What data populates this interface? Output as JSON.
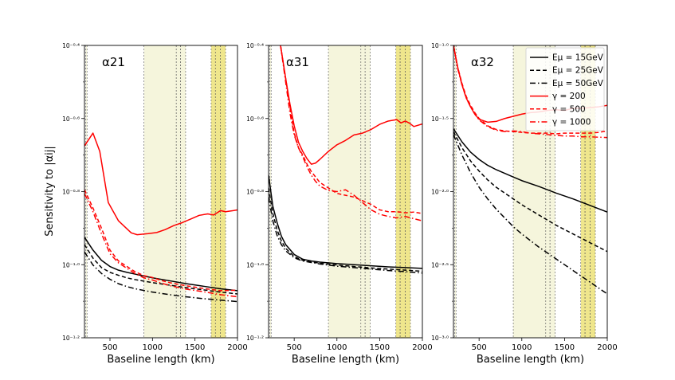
{
  "figure": {
    "ylabel": "Sensitivity to |αij|",
    "xlabel": "Baseline length (km)"
  },
  "chart_data": [
    {
      "type": "line",
      "panel_label": "α21",
      "xlabel": "Baseline length (km)",
      "ylabel": "Sensitivity to |αij|",
      "xlim": [
        200,
        2000
      ],
      "ylim_log10": [
        -1.2,
        -0.4
      ],
      "yscale": "log",
      "xticks": [
        500,
        1000,
        1500,
        2000
      ],
      "yticks": [
        {
          "v": -1.2,
          "label": "10⁻¹·²"
        },
        {
          "v": -1.0,
          "label": "10⁻¹·⁰"
        },
        {
          "v": -0.8,
          "label": "10⁻⁰·⁸"
        },
        {
          "v": -0.6,
          "label": "10⁻⁰·⁶"
        },
        {
          "v": -0.4,
          "label": "10⁻⁰·⁴"
        }
      ],
      "light_bands": [
        [
          215,
          230
        ],
        [
          900,
          1280
        ],
        [
          1280,
          1330
        ],
        [
          1330,
          1390
        ]
      ],
      "dark_bands": [
        [
          1690,
          1740
        ],
        [
          1740,
          1800
        ],
        [
          1800,
          1860
        ]
      ],
      "series": [
        {
          "name": "Eμ = 15GeV",
          "color": "#000000",
          "dash": "solid",
          "x": [
            200,
            300,
            400,
            500,
            600,
            700,
            800,
            1000,
            1200,
            1400,
            1600,
            1800,
            2000
          ],
          "y": [
            -0.925,
            -0.96,
            -0.988,
            -1.005,
            -1.015,
            -1.021,
            -1.026,
            -1.036,
            -1.044,
            -1.052,
            -1.059,
            -1.066,
            -1.071
          ]
        },
        {
          "name": "Eμ = 25GeV",
          "color": "#000000",
          "dash": "dashed",
          "x": [
            200,
            300,
            400,
            500,
            600,
            700,
            800,
            1000,
            1200,
            1400,
            1600,
            1800,
            2000
          ],
          "y": [
            -0.945,
            -0.982,
            -1.008,
            -1.021,
            -1.029,
            -1.036,
            -1.041,
            -1.049,
            -1.056,
            -1.063,
            -1.069,
            -1.075,
            -1.08
          ]
        },
        {
          "name": "Eμ = 50GeV",
          "color": "#000000",
          "dash": "dashdot",
          "x": [
            200,
            300,
            400,
            500,
            600,
            700,
            800,
            1000,
            1200,
            1400,
            1600,
            1800,
            2000
          ],
          "y": [
            -0.965,
            -1.001,
            -1.024,
            -1.04,
            -1.052,
            -1.06,
            -1.066,
            -1.075,
            -1.082,
            -1.088,
            -1.093,
            -1.097,
            -1.101
          ]
        },
        {
          "name": "γ = 200",
          "color": "#ff0000",
          "dash": "solid",
          "x": [
            200,
            300,
            380,
            480,
            600,
            750,
            820,
            950,
            1050,
            1150,
            1250,
            1350,
            1450,
            1550,
            1650,
            1720,
            1800,
            1860,
            1950,
            2000
          ],
          "y": [
            -0.675,
            -0.64,
            -0.69,
            -0.83,
            -0.88,
            -0.913,
            -0.918,
            -0.915,
            -0.912,
            -0.904,
            -0.893,
            -0.885,
            -0.875,
            -0.865,
            -0.861,
            -0.864,
            -0.852,
            -0.855,
            -0.852,
            -0.85
          ]
        },
        {
          "name": "γ = 500",
          "color": "#ff0000",
          "dash": "dashed",
          "x": [
            200,
            300,
            400,
            500,
            600,
            700,
            800,
            900,
            1000,
            1100,
            1200,
            1400,
            1600,
            1800,
            2000
          ],
          "y": [
            -0.795,
            -0.845,
            -0.9,
            -0.96,
            -0.99,
            -1.005,
            -1.02,
            -1.03,
            -1.035,
            -1.043,
            -1.049,
            -1.058,
            -1.065,
            -1.071,
            -1.07
          ]
        },
        {
          "name": "γ = 1000",
          "color": "#ff0000",
          "dash": "dashdot",
          "x": [
            200,
            300,
            400,
            500,
            600,
            700,
            800,
            900,
            1000,
            1100,
            1200,
            1400,
            1600,
            1800,
            2000
          ],
          "y": [
            -0.805,
            -0.855,
            -0.915,
            -0.97,
            -0.995,
            -1.01,
            -1.025,
            -1.036,
            -1.042,
            -1.05,
            -1.057,
            -1.067,
            -1.074,
            -1.082,
            -1.088
          ]
        }
      ]
    },
    {
      "type": "line",
      "panel_label": "α31",
      "xlabel": "Baseline length (km)",
      "xlim": [
        200,
        2000
      ],
      "ylim_log10": [
        -1.2,
        -0.4
      ],
      "yscale": "log",
      "xticks": [
        500,
        1000,
        1500,
        2000
      ],
      "yticks": [
        {
          "v": -1.2,
          "label": "10⁻¹·²"
        },
        {
          "v": -1.0,
          "label": "10⁻¹·⁰"
        },
        {
          "v": -0.8,
          "label": "10⁻⁰·⁸"
        },
        {
          "v": -0.6,
          "label": "10⁻⁰·⁶"
        },
        {
          "v": -0.4,
          "label": "10⁻⁰·⁴"
        }
      ],
      "light_bands": [
        [
          215,
          230
        ],
        [
          900,
          1280
        ],
        [
          1280,
          1330
        ],
        [
          1330,
          1390
        ]
      ],
      "dark_bands": [
        [
          1690,
          1740
        ],
        [
          1740,
          1800
        ],
        [
          1800,
          1860
        ]
      ],
      "series": [
        {
          "name": "Eμ = 15GeV",
          "color": "#000000",
          "dash": "solid",
          "x": [
            200,
            250,
            300,
            350,
            400,
            500,
            600,
            700,
            800,
            1000,
            1200,
            1400,
            1600,
            1800,
            2000
          ],
          "y": [
            -0.755,
            -0.84,
            -0.885,
            -0.922,
            -0.945,
            -0.972,
            -0.985,
            -0.99,
            -0.993,
            -0.997,
            -1.0,
            -1.003,
            -1.006,
            -1.008,
            -1.01
          ]
        },
        {
          "name": "Eμ = 25GeV",
          "color": "#000000",
          "dash": "dashed",
          "x": [
            200,
            250,
            300,
            350,
            400,
            500,
            600,
            700,
            800,
            1000,
            1200,
            1400,
            1600,
            1800,
            2000
          ],
          "y": [
            -0.79,
            -0.86,
            -0.905,
            -0.935,
            -0.955,
            -0.978,
            -0.988,
            -0.992,
            -0.996,
            -1.001,
            -1.005,
            -1.009,
            -1.012,
            -1.015,
            -1.018
          ]
        },
        {
          "name": "Eμ = 50GeV",
          "color": "#000000",
          "dash": "dashdot",
          "x": [
            200,
            250,
            300,
            350,
            400,
            500,
            600,
            700,
            800,
            1000,
            1200,
            1400,
            1600,
            1800,
            2000
          ],
          "y": [
            -0.815,
            -0.88,
            -0.92,
            -0.945,
            -0.962,
            -0.981,
            -0.99,
            -0.994,
            -0.998,
            -1.004,
            -1.008,
            -1.012,
            -1.016,
            -1.019,
            -1.023
          ]
        },
        {
          "name": "γ = 200",
          "color": "#ff0000",
          "dash": "solid",
          "x": [
            340,
            400,
            450,
            500,
            550,
            600,
            650,
            700,
            750,
            800,
            900,
            1000,
            1100,
            1200,
            1300,
            1400,
            1500,
            1600,
            1700,
            1750,
            1800,
            1850,
            1900,
            2000
          ],
          "y": [
            -0.4,
            -0.49,
            -0.56,
            -0.62,
            -0.665,
            -0.69,
            -0.71,
            -0.725,
            -0.722,
            -0.712,
            -0.69,
            -0.672,
            -0.66,
            -0.645,
            -0.64,
            -0.63,
            -0.616,
            -0.607,
            -0.603,
            -0.612,
            -0.607,
            -0.613,
            -0.622,
            -0.615
          ]
        },
        {
          "name": "γ = 500",
          "color": "#ff0000",
          "dash": "dashed",
          "x": [
            340,
            400,
            450,
            500,
            550,
            600,
            650,
            700,
            750,
            800,
            900,
            1000,
            1100,
            1200,
            1300,
            1400,
            1500,
            1600,
            1700,
            1800,
            1900,
            2000
          ],
          "y": [
            -0.4,
            -0.49,
            -0.57,
            -0.64,
            -0.68,
            -0.7,
            -0.725,
            -0.745,
            -0.76,
            -0.775,
            -0.79,
            -0.805,
            -0.81,
            -0.815,
            -0.825,
            -0.835,
            -0.85,
            -0.855,
            -0.855,
            -0.858,
            -0.856,
            -0.86
          ]
        },
        {
          "name": "γ = 1000",
          "color": "#ff0000",
          "dash": "dashdot",
          "x": [
            340,
            400,
            450,
            500,
            550,
            600,
            650,
            700,
            750,
            800,
            900,
            1000,
            1100,
            1200,
            1300,
            1400,
            1500,
            1600,
            1700,
            1800,
            1900,
            2000
          ],
          "y": [
            -0.4,
            -0.5,
            -0.585,
            -0.645,
            -0.68,
            -0.705,
            -0.732,
            -0.755,
            -0.772,
            -0.785,
            -0.797,
            -0.8,
            -0.795,
            -0.81,
            -0.83,
            -0.85,
            -0.862,
            -0.868,
            -0.872,
            -0.868,
            -0.874,
            -0.88
          ]
        }
      ]
    },
    {
      "type": "line",
      "panel_label": "α32",
      "xlabel": "Baseline length (km)",
      "xlim": [
        200,
        2000
      ],
      "ylim_log10": [
        -3.0,
        -1.0
      ],
      "yscale": "log",
      "xticks": [
        500,
        1000,
        1500,
        2000
      ],
      "yticks": [
        {
          "v": -3.0,
          "label": "10⁻³·⁰"
        },
        {
          "v": -2.5,
          "label": "10⁻²·⁵"
        },
        {
          "v": -2.0,
          "label": "10⁻²·⁰"
        },
        {
          "v": -1.5,
          "label": "10⁻¹·⁵"
        },
        {
          "v": -1.0,
          "label": "10⁻¹·⁰"
        }
      ],
      "light_bands": [
        [
          215,
          230
        ],
        [
          900,
          1280
        ],
        [
          1280,
          1330
        ],
        [
          1330,
          1390
        ]
      ],
      "dark_bands": [
        [
          1690,
          1740
        ],
        [
          1740,
          1800
        ],
        [
          1800,
          1860
        ]
      ],
      "series": [
        {
          "name": "Eμ = 15GeV",
          "color": "#000000",
          "dash": "solid",
          "x": [
            200,
            300,
            400,
            500,
            600,
            700,
            800,
            900,
            1000,
            1200,
            1400,
            1600,
            1800,
            2000
          ],
          "y": [
            -1.57,
            -1.66,
            -1.73,
            -1.78,
            -1.82,
            -1.85,
            -1.875,
            -1.9,
            -1.925,
            -1.965,
            -2.01,
            -2.05,
            -2.095,
            -2.14
          ]
        },
        {
          "name": "Eμ = 25GeV",
          "color": "#000000",
          "dash": "dashed",
          "x": [
            200,
            300,
            400,
            500,
            600,
            700,
            800,
            900,
            1000,
            1200,
            1400,
            1600,
            1800,
            2000
          ],
          "y": [
            -1.59,
            -1.7,
            -1.79,
            -1.86,
            -1.92,
            -1.97,
            -2.01,
            -2.05,
            -2.09,
            -2.16,
            -2.23,
            -2.29,
            -2.35,
            -2.41
          ]
        },
        {
          "name": "Eμ = 50GeV",
          "color": "#000000",
          "dash": "dashdot",
          "x": [
            200,
            300,
            400,
            500,
            600,
            700,
            800,
            900,
            1000,
            1200,
            1400,
            1600,
            1800,
            2000
          ],
          "y": [
            -1.61,
            -1.75,
            -1.87,
            -1.97,
            -2.05,
            -2.12,
            -2.18,
            -2.24,
            -2.29,
            -2.38,
            -2.46,
            -2.54,
            -2.62,
            -2.7
          ]
        },
        {
          "name": "γ = 200",
          "color": "#ff0000",
          "dash": "solid",
          "x": [
            200,
            250,
            300,
            350,
            400,
            450,
            500,
            600,
            700,
            800,
            900,
            1000,
            1100,
            1200,
            1300,
            1400,
            1500,
            1600,
            1700,
            1800,
            1900,
            2000
          ],
          "y": [
            -1.0,
            -1.15,
            -1.27,
            -1.36,
            -1.42,
            -1.47,
            -1.505,
            -1.525,
            -1.52,
            -1.5,
            -1.485,
            -1.47,
            -1.46,
            -1.455,
            -1.445,
            -1.44,
            -1.445,
            -1.43,
            -1.43,
            -1.425,
            -1.42,
            -1.41
          ]
        },
        {
          "name": "γ = 500",
          "color": "#ff0000",
          "dash": "dashed",
          "x": [
            200,
            250,
            300,
            350,
            400,
            450,
            500,
            600,
            700,
            800,
            900,
            1000,
            1100,
            1200,
            1300,
            1400,
            1500,
            1600,
            1700,
            1800,
            1900,
            2000
          ],
          "y": [
            -1.0,
            -1.15,
            -1.26,
            -1.35,
            -1.41,
            -1.46,
            -1.5,
            -1.55,
            -1.575,
            -1.585,
            -1.59,
            -1.595,
            -1.6,
            -1.6,
            -1.6,
            -1.605,
            -1.6,
            -1.6,
            -1.6,
            -1.6,
            -1.595,
            -1.585
          ]
        },
        {
          "name": "γ = 1000",
          "color": "#ff0000",
          "dash": "dashdot",
          "x": [
            200,
            250,
            300,
            350,
            400,
            450,
            500,
            600,
            700,
            800,
            900,
            1000,
            1100,
            1200,
            1300,
            1400,
            1500,
            1600,
            1700,
            1800,
            1900,
            2000
          ],
          "y": [
            -1.0,
            -1.16,
            -1.27,
            -1.36,
            -1.42,
            -1.47,
            -1.51,
            -1.555,
            -1.58,
            -1.59,
            -1.585,
            -1.59,
            -1.6,
            -1.605,
            -1.61,
            -1.615,
            -1.62,
            -1.62,
            -1.625,
            -1.625,
            -1.628,
            -1.63
          ]
        }
      ],
      "legend": {
        "placement": "top-right",
        "entries": [
          {
            "label": "Eμ = 15GeV",
            "color": "#000000",
            "dash": "solid"
          },
          {
            "label": "Eμ = 25GeV",
            "color": "#000000",
            "dash": "dashed"
          },
          {
            "label": "Eμ = 50GeV",
            "color": "#000000",
            "dash": "dashdot"
          },
          {
            "label": "γ = 200",
            "color": "#ff0000",
            "dash": "solid"
          },
          {
            "label": "γ = 500",
            "color": "#ff0000",
            "dash": "dashed"
          },
          {
            "label": "γ = 1000",
            "color": "#ff0000",
            "dash": "dashdot"
          }
        ]
      }
    }
  ],
  "colors": {
    "band_light": "#f5f5dc",
    "band_dark": "#efe68c"
  }
}
